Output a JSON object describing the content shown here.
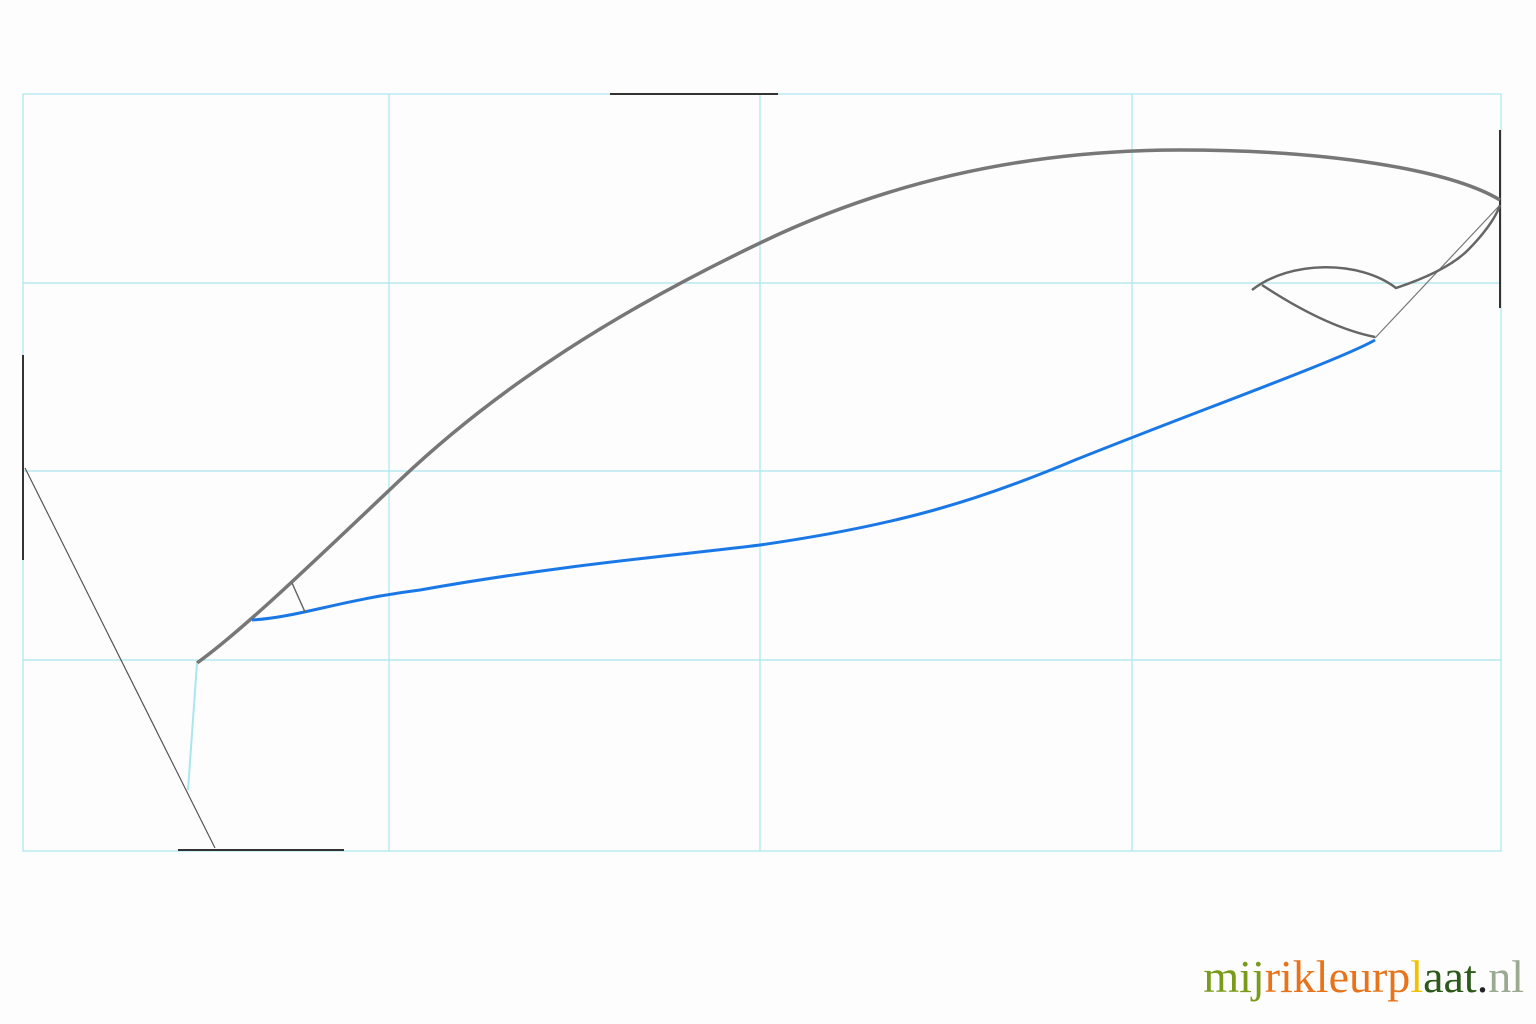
{
  "watermark": {
    "parts": [
      "mij",
      "rikleurp",
      "l",
      "aat",
      ".",
      "nl"
    ]
  }
}
